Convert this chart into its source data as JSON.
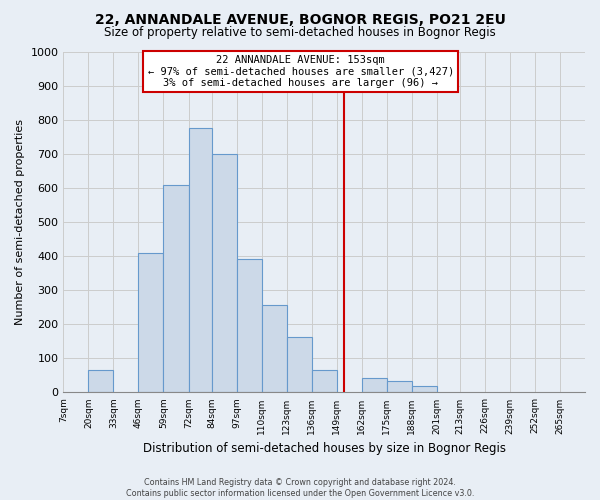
{
  "title": "22, ANNANDALE AVENUE, BOGNOR REGIS, PO21 2EU",
  "subtitle": "Size of property relative to semi-detached houses in Bognor Regis",
  "xlabel": "Distribution of semi-detached houses by size in Bognor Regis",
  "ylabel": "Number of semi-detached properties",
  "bin_labels": [
    "7sqm",
    "20sqm",
    "33sqm",
    "46sqm",
    "59sqm",
    "72sqm",
    "84sqm",
    "97sqm",
    "110sqm",
    "123sqm",
    "136sqm",
    "149sqm",
    "162sqm",
    "175sqm",
    "188sqm",
    "201sqm",
    "213sqm",
    "226sqm",
    "239sqm",
    "252sqm",
    "265sqm"
  ],
  "bin_edges": [
    7,
    20,
    33,
    46,
    59,
    72,
    84,
    97,
    110,
    123,
    136,
    149,
    162,
    175,
    188,
    201,
    213,
    226,
    239,
    252,
    265,
    278
  ],
  "bar_heights": [
    0,
    65,
    0,
    408,
    608,
    775,
    700,
    390,
    255,
    162,
    65,
    0,
    42,
    33,
    18,
    0,
    0,
    0,
    0,
    0,
    0
  ],
  "bar_color": "#ccd9e8",
  "bar_edge_color": "#6699cc",
  "vline_x": 153,
  "vline_color": "#cc0000",
  "annotation_title": "22 ANNANDALE AVENUE: 153sqm",
  "annotation_line1": "← 97% of semi-detached houses are smaller (3,427)",
  "annotation_line2": "3% of semi-detached houses are larger (96) →",
  "ylim": [
    0,
    1000
  ],
  "yticks": [
    0,
    100,
    200,
    300,
    400,
    500,
    600,
    700,
    800,
    900,
    1000
  ],
  "grid_color": "#cccccc",
  "background_color": "#e8eef5",
  "footer_line1": "Contains HM Land Registry data © Crown copyright and database right 2024.",
  "footer_line2": "Contains public sector information licensed under the Open Government Licence v3.0."
}
